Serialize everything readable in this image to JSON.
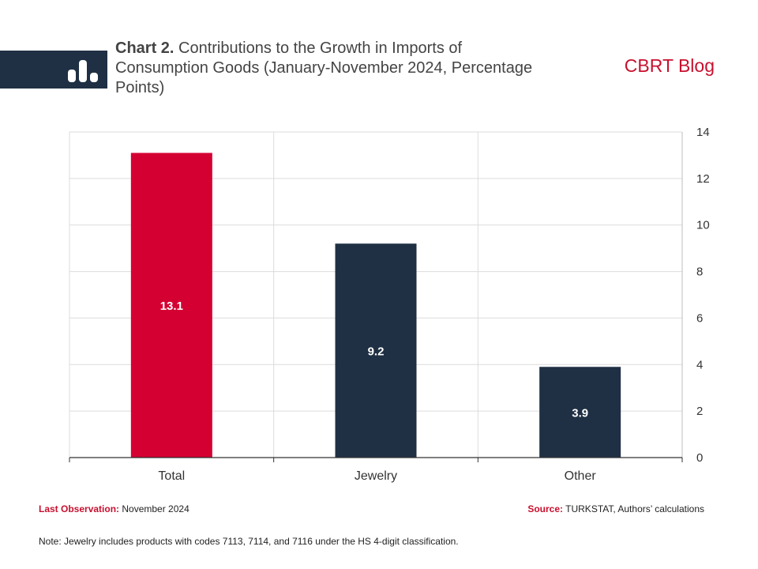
{
  "header": {
    "title_lead": "Chart 2.",
    "title_rest": " Contributions to the Growth in Imports of Consumption Goods (January-November 2024, Percentage Points)",
    "brand": "CBRT Blog",
    "icon": "bar-chart-icon"
  },
  "chart_data": {
    "type": "bar",
    "categories": [
      "Total",
      "Jewelry",
      "Other"
    ],
    "values": [
      13.1,
      9.2,
      3.9
    ],
    "data_labels": [
      "13.1",
      "9.2",
      "3.9"
    ],
    "colors": [
      "#d50032",
      "#1f3044",
      "#1f3044"
    ],
    "title": "Contributions to the Growth in Imports of Consumption Goods (January-November 2024, Percentage Points)",
    "xlabel": "",
    "ylabel": "",
    "ylim": [
      0,
      14
    ],
    "yticks": [
      0,
      2,
      4,
      6,
      8,
      10,
      12,
      14
    ],
    "y_axis_side": "right",
    "grid": true
  },
  "footer": {
    "last_obs_label": "Last Observation:",
    "last_obs_value": " November 2024",
    "source_label": "Source:",
    "source_value": " TURKSTAT, Authors’ calculations",
    "note": "Note: Jewelry includes products with codes 7113, 7114, and 7116 under the HS 4-digit classification."
  }
}
